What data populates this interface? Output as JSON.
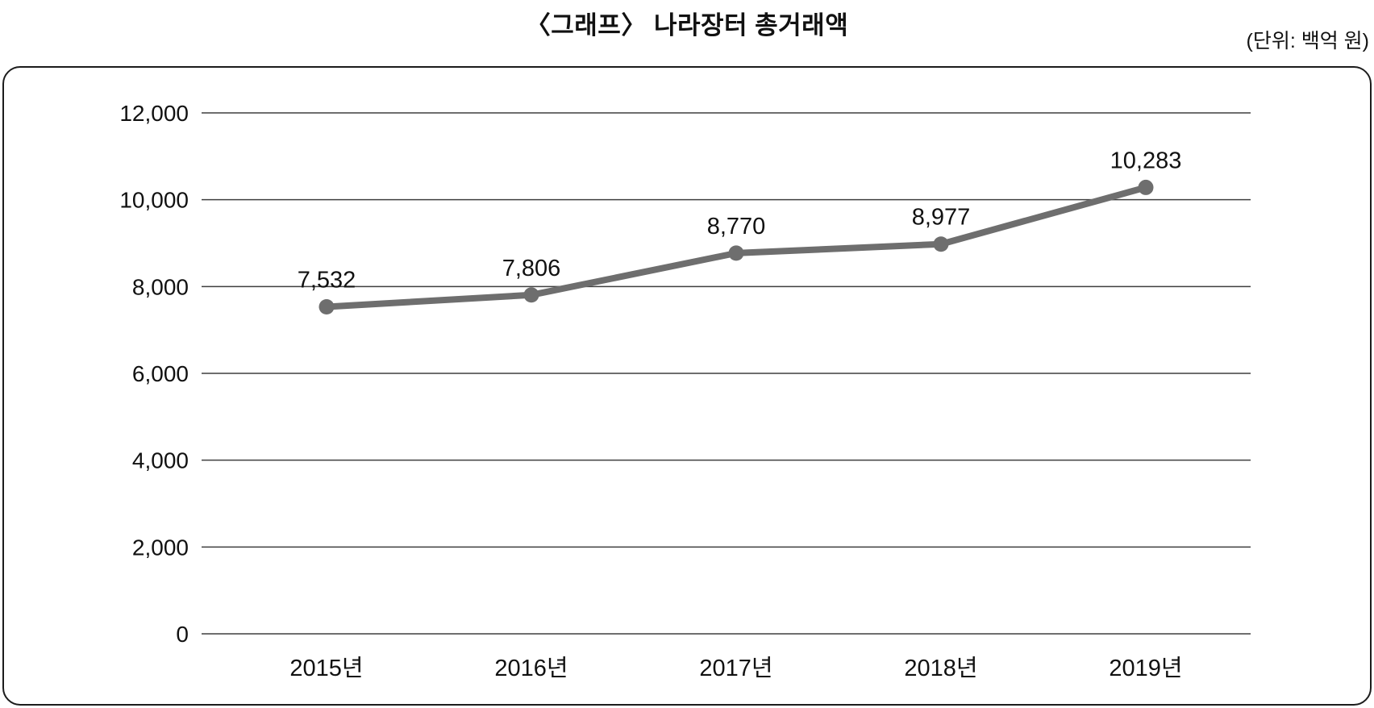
{
  "page": {
    "title": "〈그래프〉 나라장터 총거래액",
    "unit_label": "(단위: 백억 원)"
  },
  "chart_data": {
    "type": "line",
    "title": "〈그래프〉 나라장터 총거래액",
    "unit_label": "(단위: 백억 원)",
    "categories": [
      "2015년",
      "2016년",
      "2017년",
      "2018년",
      "2019년"
    ],
    "series": [
      {
        "name": "나라장터 총거래액",
        "values": [
          7532,
          7806,
          8770,
          8977,
          10283
        ],
        "point_labels": [
          "7,532",
          "7,806",
          "8,770",
          "8,977",
          "10,283"
        ]
      }
    ],
    "xlabel": "",
    "ylabel": "",
    "ylim": [
      0,
      12000
    ],
    "ytick_step": 2000,
    "ytick_labels": [
      "0",
      "2,000",
      "4,000",
      "6,000",
      "8,000",
      "10,000",
      "12,000"
    ],
    "grid": true,
    "legend_position": "none",
    "line_color": "#6e6e6e",
    "marker_color": "#6e6e6e",
    "grid_color": "#3f3f3f",
    "text_color": "#111111"
  }
}
